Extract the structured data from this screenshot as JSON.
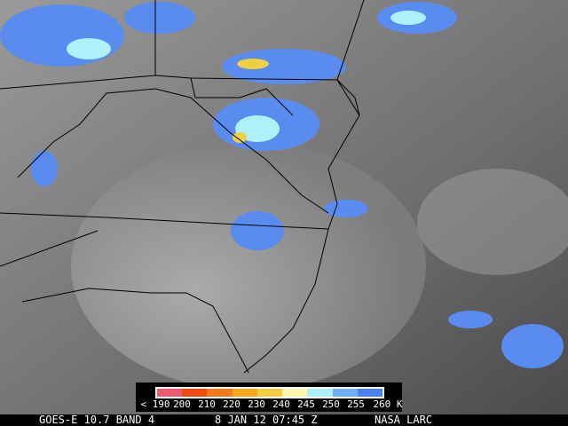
{
  "legend": {
    "colors": [
      "#f05a6e",
      "#f04a10",
      "#f57a1c",
      "#f8a818",
      "#f0d040",
      "#fff8b0",
      "#b0f0f8",
      "#70b0f8",
      "#4a80f8"
    ],
    "ticks": [
      "< 190",
      "200",
      "210",
      "220",
      "230",
      "240",
      "245",
      "250",
      "255",
      "260 K"
    ]
  },
  "footer": {
    "satellite": "GOES-E 10.7 BAND 4",
    "datetime": "8 JAN 12 07:45 Z",
    "source": "NASA LARC"
  }
}
